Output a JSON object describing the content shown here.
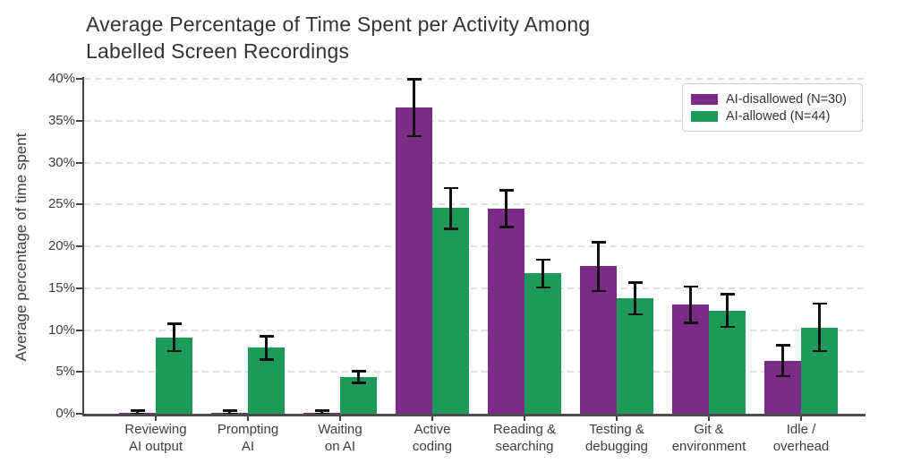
{
  "title": {
    "line1": "Average Percentage of Time Spent per Activity Among",
    "line2": "Labelled Screen Recordings"
  },
  "chart_data": {
    "type": "bar",
    "title": "Average Percentage of Time Spent per Activity Among Labelled Screen Recordings",
    "xlabel": "",
    "ylabel": "Average percentage of time spent",
    "ylim": [
      0,
      40
    ],
    "yticks": [
      0,
      5,
      10,
      15,
      20,
      25,
      30,
      35,
      40
    ],
    "ytick_labels": [
      "0%",
      "5%",
      "10%",
      "15%",
      "20%",
      "25%",
      "30%",
      "35%",
      "40%"
    ],
    "grid": "horizontal-dashed",
    "legend_position": "upper-right",
    "error_bars": true,
    "categories": [
      [
        "Reviewing",
        "AI output"
      ],
      [
        "Prompting",
        "AI"
      ],
      [
        "Waiting",
        "on AI"
      ],
      [
        "Active",
        "coding"
      ],
      [
        "Reading &",
        "searching"
      ],
      [
        "Testing &",
        "debugging"
      ],
      [
        "Git &",
        "environment"
      ],
      [
        "Idle /",
        "overhead"
      ]
    ],
    "series": [
      {
        "name": "AI-disallowed (N=30)",
        "color": "#7b2c85",
        "values": [
          0.1,
          0.1,
          0.1,
          36.6,
          24.5,
          17.6,
          13.0,
          6.3
        ],
        "err_low": [
          0.1,
          0.1,
          0.1,
          3.4,
          2.2,
          2.9,
          2.1,
          1.8
        ],
        "err_high": [
          0.3,
          0.3,
          0.3,
          3.4,
          2.2,
          2.9,
          2.2,
          1.9
        ]
      },
      {
        "name": "AI-allowed (N=44)",
        "color": "#1d9a59",
        "values": [
          9.1,
          7.9,
          4.4,
          24.6,
          16.8,
          13.8,
          12.3,
          10.3
        ],
        "err_low": [
          1.6,
          1.4,
          0.7,
          2.5,
          1.7,
          1.9,
          1.9,
          2.8
        ],
        "err_high": [
          1.7,
          1.4,
          0.7,
          2.4,
          1.6,
          1.9,
          2.0,
          2.9
        ]
      }
    ]
  }
}
